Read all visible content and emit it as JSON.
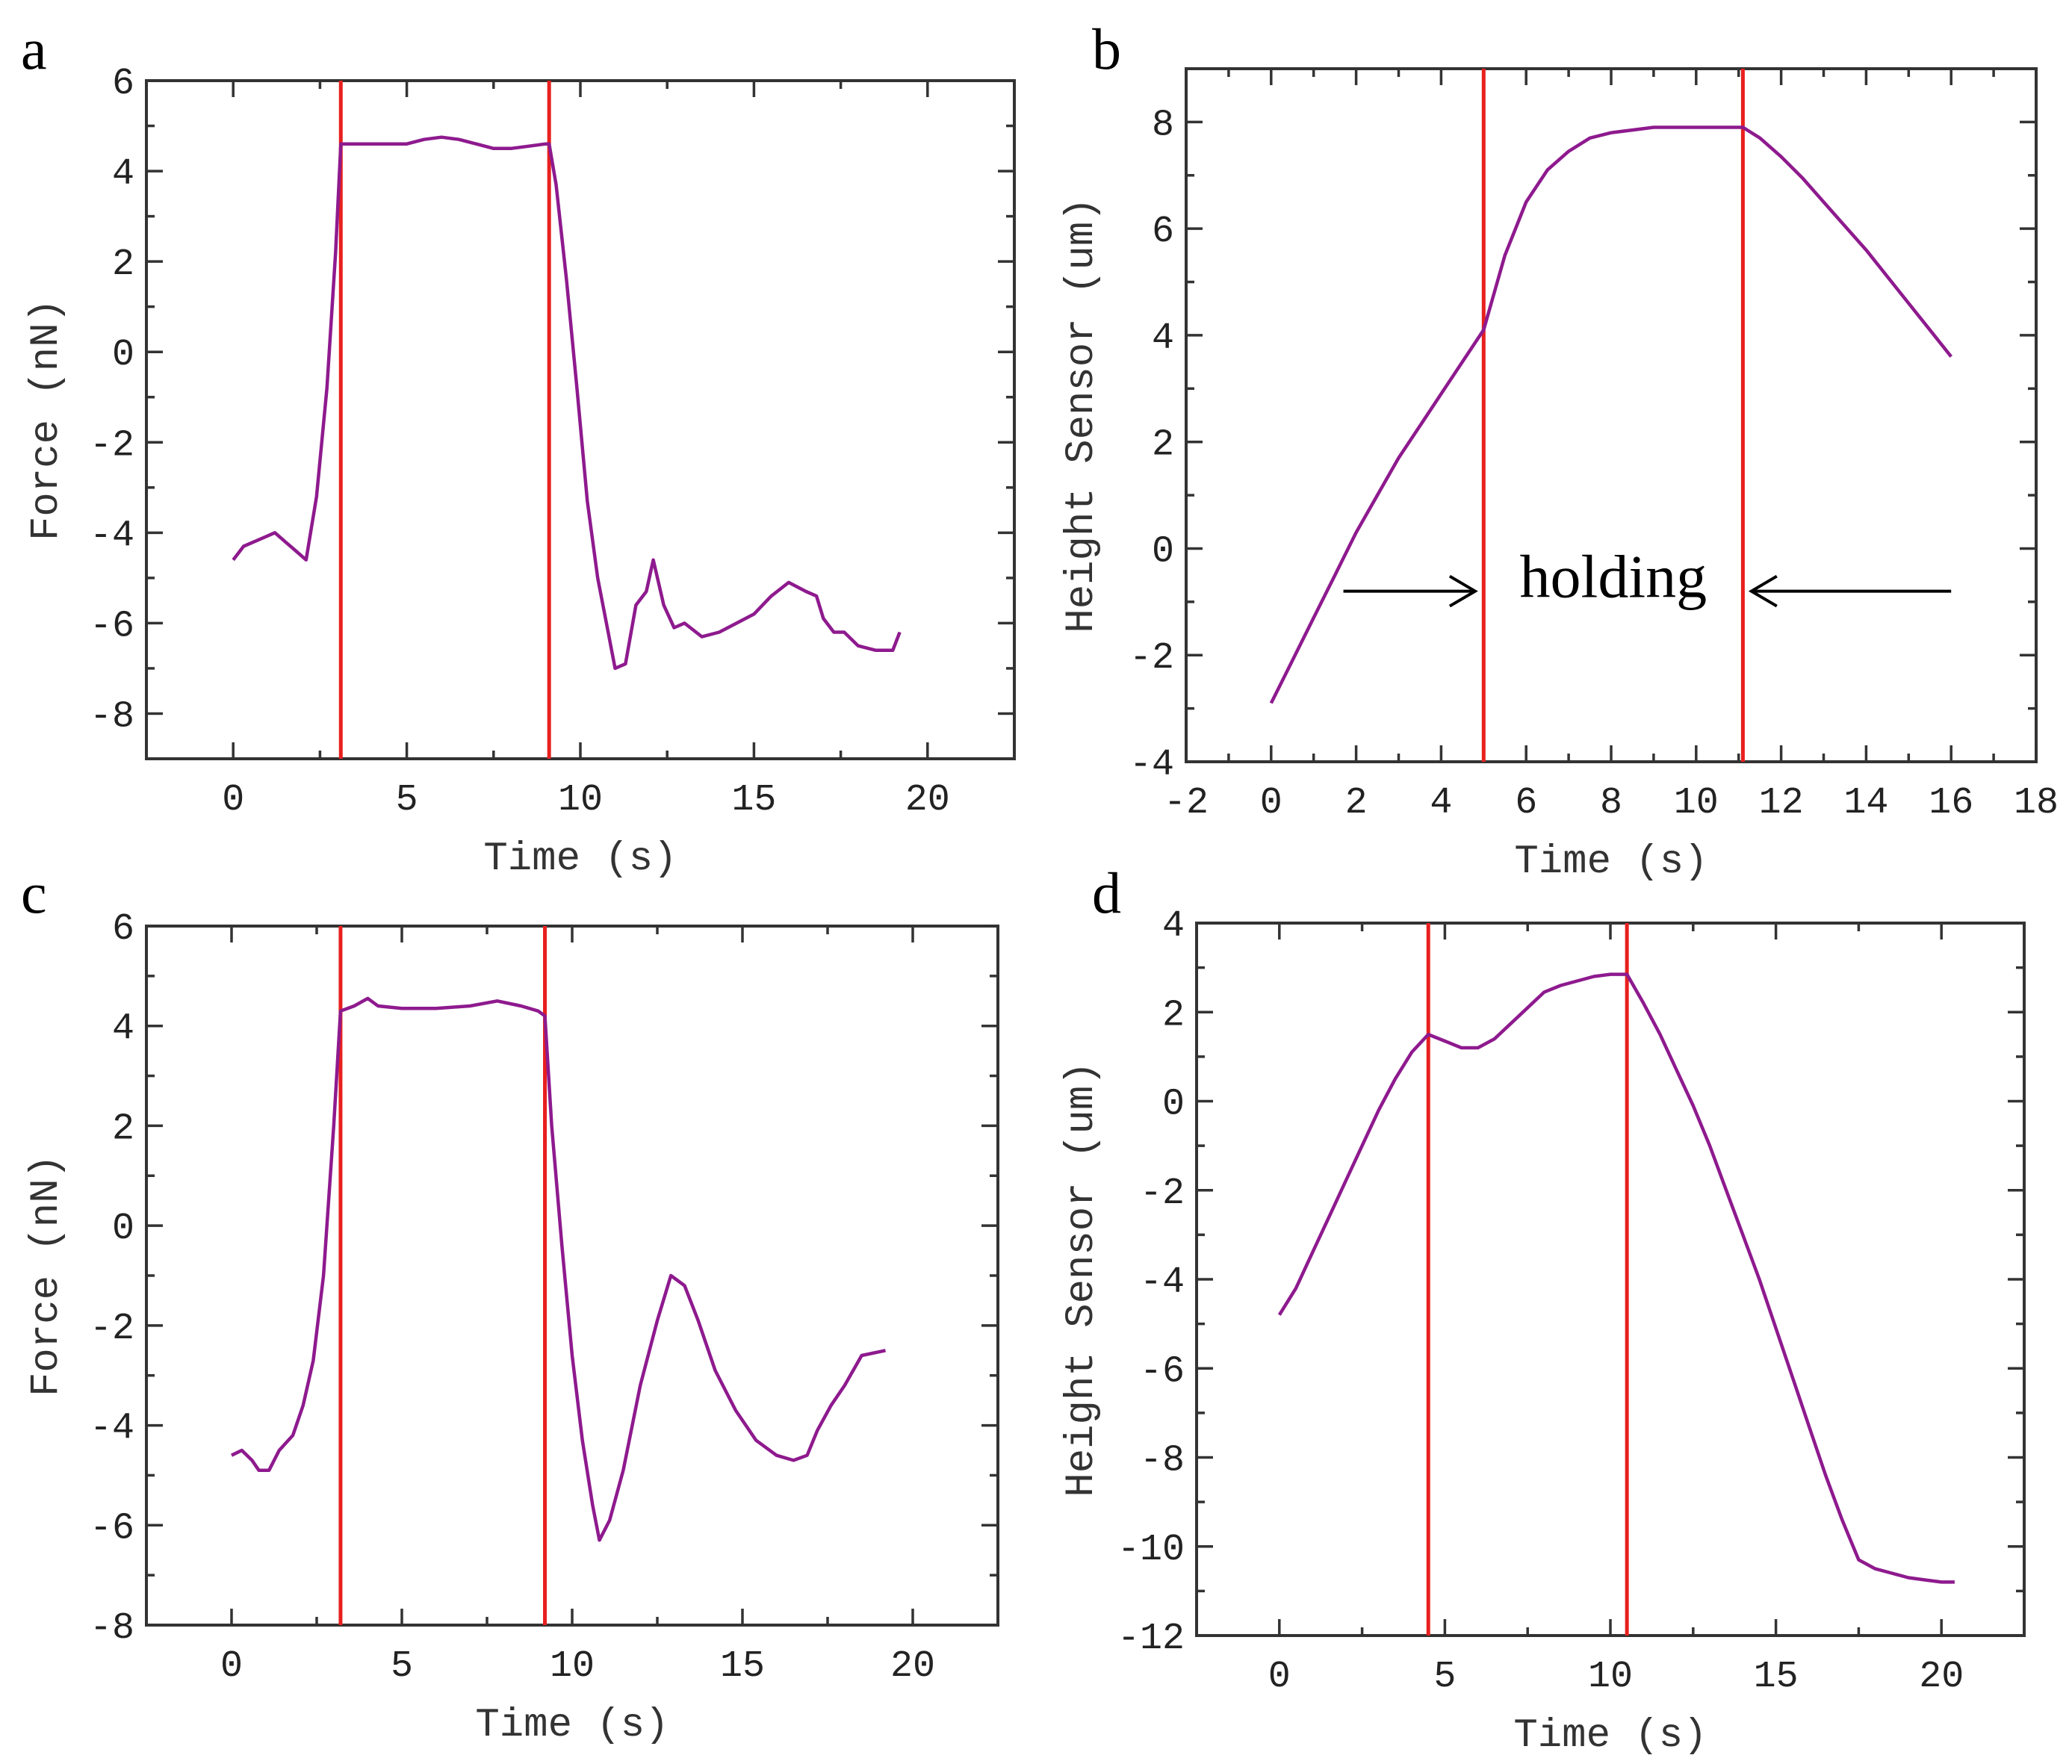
{
  "chart_data": [
    {
      "panel": "a",
      "type": "line",
      "xlabel": "Time (s)",
      "ylabel": "Force (nN)",
      "xlim": [
        -2.5,
        22.5
      ],
      "ylim": [
        -9,
        6
      ],
      "xticks": [
        0,
        5,
        10,
        15,
        20
      ],
      "yticks": [
        -8,
        -6,
        -4,
        -2,
        0,
        2,
        4,
        6
      ],
      "vlines": [
        3.1,
        9.1
      ],
      "series": [
        {
          "color": "#8e1a8e",
          "x": [
            0,
            0.3,
            0.6,
            0.9,
            1.2,
            1.5,
            1.8,
            2.1,
            2.4,
            2.7,
            2.95,
            3.1,
            4,
            5,
            5.5,
            6,
            6.5,
            7,
            7.5,
            8,
            8.5,
            9,
            9.1,
            9.3,
            9.6,
            9.9,
            10.2,
            10.5,
            10.8,
            11,
            11.3,
            11.6,
            11.9,
            12.1,
            12.4,
            12.7,
            13,
            13.5,
            14,
            14.5,
            15,
            15.5,
            16,
            16.5,
            16.8,
            17,
            17.3,
            17.6,
            18,
            18.5,
            19,
            19.2
          ],
          "y": [
            -4.6,
            -4.3,
            -4.2,
            -4.1,
            -4.0,
            -4.2,
            -4.4,
            -4.6,
            -3.2,
            -0.8,
            2.2,
            4.6,
            4.6,
            4.6,
            4.7,
            4.75,
            4.7,
            4.6,
            4.5,
            4.5,
            4.55,
            4.6,
            4.6,
            3.7,
            1.6,
            -0.8,
            -3.3,
            -5.0,
            -6.2,
            -7.0,
            -6.9,
            -5.6,
            -5.3,
            -4.6,
            -5.6,
            -6.1,
            -6.0,
            -6.3,
            -6.2,
            -6.0,
            -5.8,
            -5.4,
            -5.1,
            -5.3,
            -5.4,
            -5.9,
            -6.2,
            -6.2,
            -6.5,
            -6.6,
            -6.6,
            -6.2
          ]
        }
      ]
    },
    {
      "panel": "b",
      "type": "line",
      "xlabel": "Time (s)",
      "ylabel": "Height Sensor (um)",
      "xlim": [
        -2,
        18
      ],
      "ylim": [
        -4,
        9
      ],
      "xticks": [
        -2,
        0,
        2,
        4,
        6,
        8,
        10,
        12,
        14,
        16,
        18
      ],
      "yticks": [
        -4,
        -2,
        0,
        2,
        4,
        6,
        8
      ],
      "vlines": [
        5,
        11.1
      ],
      "annotation": "holding",
      "series": [
        {
          "color": "#8e1a8e",
          "x": [
            0,
            0.5,
            1,
            1.5,
            2,
            2.5,
            3,
            3.5,
            4,
            4.5,
            5,
            5.5,
            6,
            6.5,
            7,
            7.5,
            8,
            8.5,
            9,
            9.5,
            10,
            10.5,
            11.1,
            11.5,
            12,
            12.5,
            13,
            13.5,
            14,
            14.5,
            15,
            15.5,
            16
          ],
          "y": [
            -2.9,
            -2.1,
            -1.3,
            -0.5,
            0.3,
            1.0,
            1.7,
            2.3,
            2.9,
            3.5,
            4.1,
            5.5,
            6.5,
            7.1,
            7.45,
            7.7,
            7.8,
            7.85,
            7.9,
            7.9,
            7.9,
            7.9,
            7.9,
            7.7,
            7.35,
            6.95,
            6.5,
            6.05,
            5.6,
            5.1,
            4.6,
            4.1,
            3.6
          ]
        }
      ]
    },
    {
      "panel": "c",
      "type": "line",
      "xlabel": "Time (s)",
      "ylabel": "Force (nN)",
      "xlim": [
        -2.5,
        22.5
      ],
      "ylim": [
        -8,
        6
      ],
      "xticks": [
        0,
        5,
        10,
        15,
        20
      ],
      "yticks": [
        -8,
        -6,
        -4,
        -2,
        0,
        2,
        4,
        6
      ],
      "vlines": [
        3.2,
        9.2
      ],
      "series": [
        {
          "color": "#8e1a8e",
          "x": [
            0,
            0.3,
            0.6,
            0.8,
            1.1,
            1.4,
            1.8,
            2.1,
            2.4,
            2.7,
            3.0,
            3.2,
            3.6,
            4.0,
            4.3,
            5,
            6,
            7,
            7.8,
            8.5,
            9.0,
            9.2,
            9.4,
            9.7,
            10.0,
            10.3,
            10.6,
            10.8,
            11.1,
            11.5,
            12,
            12.5,
            12.9,
            13.3,
            13.7,
            14.2,
            14.8,
            15.4,
            16,
            16.5,
            16.9,
            17.2,
            17.6,
            18,
            18.5,
            19.2
          ],
          "y": [
            -4.6,
            -4.5,
            -4.7,
            -4.9,
            -4.9,
            -4.5,
            -4.2,
            -3.6,
            -2.7,
            -1.0,
            2.0,
            4.3,
            4.4,
            4.55,
            4.4,
            4.35,
            4.35,
            4.4,
            4.5,
            4.4,
            4.3,
            4.2,
            2.0,
            -0.4,
            -2.6,
            -4.3,
            -5.6,
            -6.3,
            -5.9,
            -4.9,
            -3.2,
            -1.9,
            -1.0,
            -1.2,
            -1.9,
            -2.9,
            -3.7,
            -4.3,
            -4.6,
            -4.7,
            -4.6,
            -4.1,
            -3.6,
            -3.2,
            -2.6,
            -2.5
          ]
        }
      ]
    },
    {
      "panel": "d",
      "type": "line",
      "xlabel": "Time (s)",
      "ylabel": "Height Sensor (um)",
      "xlim": [
        -2.5,
        22.5
      ],
      "ylim": [
        -12,
        4
      ],
      "xticks": [
        0,
        5,
        10,
        15,
        20
      ],
      "yticks": [
        -12,
        -10,
        -8,
        -6,
        -4,
        -2,
        0,
        2,
        4
      ],
      "vlines": [
        4.5,
        10.5
      ],
      "series": [
        {
          "color": "#8e1a8e",
          "x": [
            0,
            0.5,
            1,
            1.5,
            2,
            2.5,
            3,
            3.5,
            4,
            4.5,
            5,
            5.5,
            6,
            6.5,
            7,
            7.5,
            8,
            8.5,
            9,
            9.5,
            10,
            10.5,
            11,
            11.5,
            12,
            12.5,
            13,
            13.5,
            14,
            14.5,
            15,
            15.5,
            16,
            16.5,
            17,
            17.5,
            18,
            18.5,
            19,
            19.5,
            20,
            20.4
          ],
          "y": [
            -4.8,
            -4.2,
            -3.4,
            -2.6,
            -1.8,
            -1.0,
            -0.2,
            0.5,
            1.1,
            1.5,
            1.35,
            1.2,
            1.2,
            1.4,
            1.75,
            2.1,
            2.45,
            2.6,
            2.7,
            2.8,
            2.85,
            2.85,
            2.2,
            1.5,
            0.7,
            -0.1,
            -1.0,
            -2.0,
            -3.0,
            -4.0,
            -5.1,
            -6.2,
            -7.3,
            -8.4,
            -9.4,
            -10.3,
            -10.5,
            -10.6,
            -10.7,
            -10.75,
            -10.8,
            -10.8
          ]
        }
      ]
    }
  ]
}
